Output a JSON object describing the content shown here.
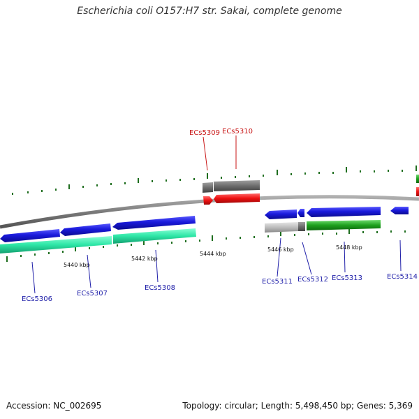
{
  "title": "Escherichia coli O157:H7 str. Sakai, complete genome",
  "accession_text": "Accession: NC_002695",
  "summary_text": "Topology: circular; Length: 5,498,450 bp; Genes: 5,369",
  "colors": {
    "backbone": "#8a8a8a",
    "cds_forward": "#1a1adc",
    "cds_reverse_blue": "#1a1adc",
    "gene_green": "#1ea01e",
    "gene_teal": "#2de6a6",
    "gene_gray": "#6e6e6e",
    "gene_lightgray": "#bdbdbd",
    "red": "#ee1010",
    "tick": "#1f6e1f",
    "label_blue": "#1e1ea8",
    "label_red": "#c81414"
  },
  "scale_labels": [
    "5440 kbp",
    "5442 kbp",
    "5444 kbp",
    "5446 kbp",
    "5448 kbp"
  ],
  "gene_labels": [
    {
      "id": "ECs5306",
      "color": "blue"
    },
    {
      "id": "ECs5307",
      "color": "blue"
    },
    {
      "id": "ECs5308",
      "color": "blue"
    },
    {
      "id": "ECs5309",
      "color": "red"
    },
    {
      "id": "ECs5310",
      "color": "red"
    },
    {
      "id": "ECs5311",
      "color": "blue"
    },
    {
      "id": "ECs5312",
      "color": "blue"
    },
    {
      "id": "ECs5313",
      "color": "blue"
    },
    {
      "id": "ECs5314",
      "color": "blue"
    }
  ]
}
